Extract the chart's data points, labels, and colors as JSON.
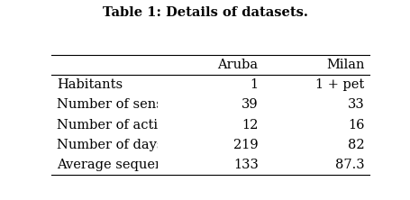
{
  "title": "Table 1: Details of datasets.",
  "col_headers": [
    "",
    "Aruba",
    "Milan"
  ],
  "rows": [
    [
      "Habitants",
      "1",
      "1 + pet"
    ],
    [
      "Number of sensors",
      "39",
      "33"
    ],
    [
      "Number of activities",
      "12",
      "16"
    ],
    [
      "Number of days",
      "219",
      "82"
    ],
    [
      "Average sequence length",
      "133",
      "87.3"
    ]
  ],
  "title_fontsize": 10.5,
  "header_fontsize": 10.5,
  "cell_fontsize": 10.5,
  "background_color": "#ffffff",
  "text_color": "#000000"
}
